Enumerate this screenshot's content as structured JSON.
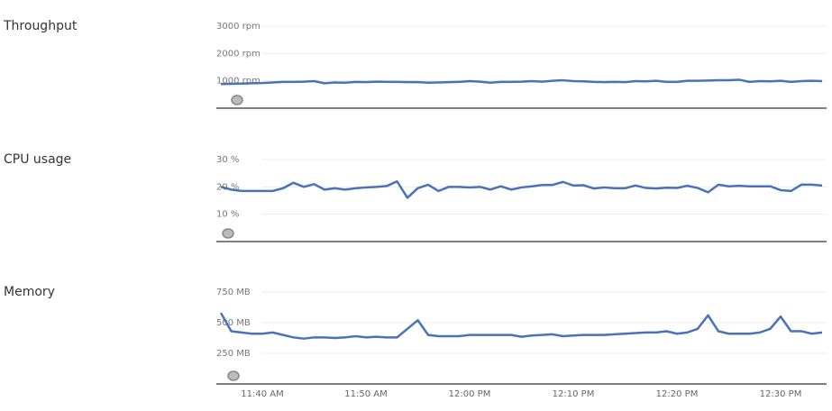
{
  "chart_data": [
    {
      "type": "line",
      "title": "Throughput",
      "ylim": [
        0,
        3000
      ],
      "yticks": [
        {
          "value": 1000,
          "label": "1000 rpm"
        },
        {
          "value": 2000,
          "label": "2000 rpm"
        },
        {
          "value": 3000,
          "label": "3000 rpm"
        }
      ],
      "grid": true,
      "series": [
        {
          "color": "#4a72b8",
          "values": [
            880,
            890,
            900,
            910,
            920,
            940,
            960,
            960,
            970,
            990,
            910,
            940,
            930,
            960,
            950,
            970,
            960,
            960,
            950,
            950,
            930,
            940,
            950,
            960,
            990,
            970,
            930,
            960,
            960,
            970,
            990,
            970,
            1000,
            1020,
            990,
            980,
            960,
            950,
            960,
            950,
            990,
            980,
            1000,
            960,
            960,
            1000,
            1000,
            1010,
            1020,
            1020,
            1040,
            960,
            990,
            980,
            1000,
            960,
            990,
            1000,
            990
          ]
        }
      ]
    },
    {
      "type": "line",
      "title": "CPU usage",
      "ylim": [
        0,
        30
      ],
      "yticks": [
        {
          "value": 10,
          "label": "10 %"
        },
        {
          "value": 20,
          "label": "20 %"
        },
        {
          "value": 30,
          "label": "30 %"
        }
      ],
      "grid": true,
      "series": [
        {
          "color": "#4a72b8",
          "values": [
            20,
            19,
            18.5,
            18.5,
            18.5,
            18.5,
            19.5,
            21.5,
            20,
            21,
            19,
            19.5,
            19,
            19.5,
            19.8,
            20,
            20.3,
            22,
            16,
            19.5,
            20.8,
            18.5,
            20,
            20,
            19.8,
            20,
            19,
            20.2,
            19,
            19.8,
            20.2,
            20.7,
            20.7,
            21.8,
            20.5,
            20.6,
            19.4,
            19.8,
            19.5,
            19.5,
            20.5,
            19.6,
            19.4,
            19.7,
            19.6,
            20.4,
            19.6,
            18,
            20.8,
            20.2,
            20.4,
            20.2,
            20.2,
            20.2,
            18.8,
            18.5,
            20.8,
            20.8,
            20.5
          ]
        }
      ]
    },
    {
      "type": "line",
      "title": "Memory",
      "ylim": [
        0,
        750
      ],
      "yticks": [
        {
          "value": 250,
          "label": "250 MB"
        },
        {
          "value": 500,
          "label": "500 MB"
        },
        {
          "value": 750,
          "label": "750 MB"
        }
      ],
      "grid": true,
      "categories": [
        null,
        null,
        null,
        null,
        "11:40 AM",
        null,
        null,
        null,
        null,
        null,
        null,
        null,
        null,
        null,
        "11:50 AM",
        null,
        null,
        null,
        null,
        null,
        null,
        null,
        null,
        null,
        "12:00 PM",
        null,
        null,
        null,
        null,
        null,
        null,
        null,
        null,
        null,
        "12:10 PM",
        null,
        null,
        null,
        null,
        null,
        null,
        null,
        null,
        null,
        "12:20 PM",
        null,
        null,
        null,
        null,
        null,
        null,
        null,
        null,
        null,
        "12:30 PM",
        null,
        null,
        null,
        null
      ],
      "series": [
        {
          "color": "#4a72b8",
          "values": [
            580,
            430,
            420,
            410,
            410,
            420,
            400,
            380,
            370,
            380,
            380,
            375,
            380,
            390,
            380,
            385,
            380,
            380,
            450,
            520,
            400,
            390,
            390,
            390,
            400,
            400,
            400,
            400,
            400,
            385,
            395,
            400,
            405,
            390,
            395,
            400,
            400,
            400,
            405,
            410,
            415,
            420,
            420,
            430,
            410,
            420,
            450,
            560,
            430,
            410,
            410,
            410,
            420,
            450,
            550,
            430,
            430,
            410,
            420
          ]
        }
      ]
    }
  ]
}
